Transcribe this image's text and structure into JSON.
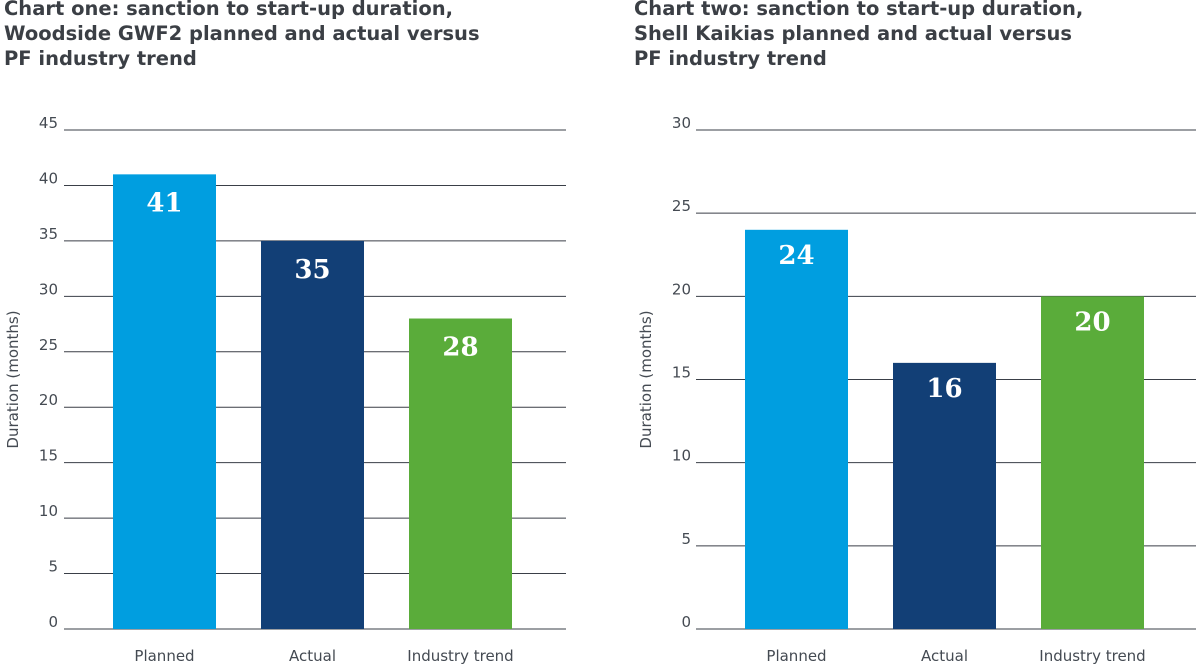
{
  "colors": {
    "planned": "#009ee0",
    "actual": "#123f76",
    "industry": "#5aac3a",
    "grid": "#3a3f47",
    "text": "#444a52"
  },
  "chart_data": [
    {
      "type": "bar",
      "title": "Chart one: sanction to start-up duration,\nWoodside GWF2 planned and actual versus\nPF industry trend",
      "xlabel": "",
      "ylabel": "Duration (months)",
      "ylim": [
        0,
        45
      ],
      "yticks": [
        0,
        5,
        10,
        15,
        20,
        25,
        30,
        35,
        40,
        45
      ],
      "grid": true,
      "categories": [
        "Planned",
        "Actual",
        "Industry trend"
      ],
      "values": [
        41,
        35,
        28
      ],
      "value_labels": [
        "41",
        "35",
        "28"
      ]
    },
    {
      "type": "bar",
      "title": "Chart two: sanction to start-up duration,\nShell Kaikias planned and actual versus\nPF industry trend",
      "xlabel": "",
      "ylabel": "Duration (months)",
      "ylim": [
        0,
        30
      ],
      "yticks": [
        0,
        5,
        10,
        15,
        20,
        25,
        30
      ],
      "grid": true,
      "categories": [
        "Planned",
        "Actual",
        "Industry trend"
      ],
      "values": [
        24,
        16,
        20
      ],
      "value_labels": [
        "24",
        "16",
        "20"
      ]
    }
  ]
}
